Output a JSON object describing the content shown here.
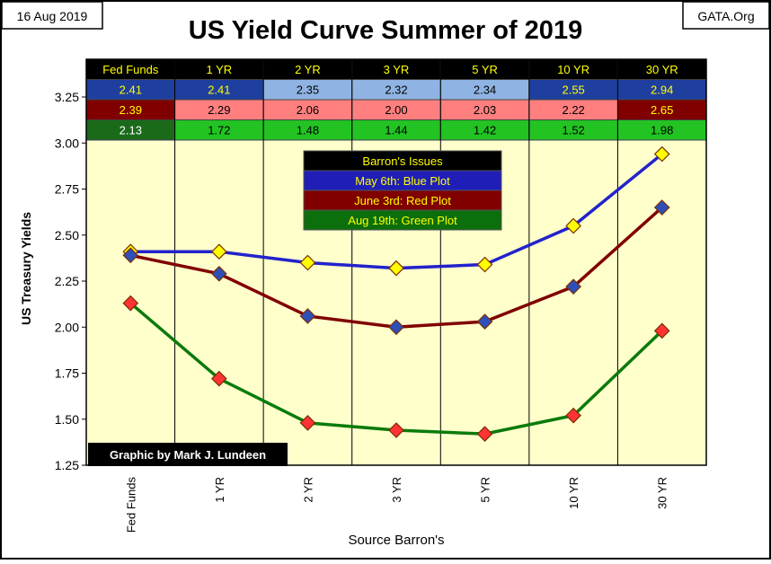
{
  "date_label": "16 Aug 2019",
  "source_label": "GATA.Org",
  "credit": "Graphic by Mark J. Lundeen",
  "legend": {
    "title": "Barron's Issues",
    "items": [
      "May 6th:  Blue Plot",
      "June 3rd: Red Plot",
      "Aug 19th: Green Plot"
    ]
  },
  "colors": {
    "blue_line": "#2222cc",
    "red_line": "#800000",
    "green_line": "#0b7a0b",
    "plot_bg": "#ffffcc",
    "header_bg": "#000000",
    "header_text": "#ffff00",
    "marker_yellow": "#ffff00",
    "marker_blue": "#2e4fb8",
    "marker_red": "#ff3333"
  },
  "table": {
    "headers": [
      "Fed Funds",
      "1 YR",
      "2 YR",
      "3 YR",
      "5 YR",
      "10 YR",
      "30 YR"
    ],
    "rows": [
      {
        "name": "May 6th",
        "values": [
          "2.41",
          "2.41",
          "2.35",
          "2.32",
          "2.34",
          "2.55",
          "2.94"
        ],
        "cell_bg": [
          "#1f3f9f",
          "#1f3f9f",
          "#8fb4e3",
          "#8fb4e3",
          "#8fb4e3",
          "#1f3f9f",
          "#1f3f9f"
        ],
        "cell_fg": [
          "#ffff00",
          "#ffff00",
          "#000000",
          "#000000",
          "#000000",
          "#ffff00",
          "#ffff00"
        ]
      },
      {
        "name": "June 3rd",
        "values": [
          "2.39",
          "2.29",
          "2.06",
          "2.00",
          "2.03",
          "2.22",
          "2.65"
        ],
        "cell_bg": [
          "#800000",
          "#ff7f7f",
          "#ff7f7f",
          "#ff7f7f",
          "#ff7f7f",
          "#ff7f7f",
          "#800000"
        ],
        "cell_fg": [
          "#ffff00",
          "#000000",
          "#000000",
          "#000000",
          "#000000",
          "#000000",
          "#ffff00"
        ]
      },
      {
        "name": "Aug 19th",
        "values": [
          "2.13",
          "1.72",
          "1.48",
          "1.44",
          "1.42",
          "1.52",
          "1.98"
        ],
        "cell_bg": [
          "#1a6a1a",
          "#22c322",
          "#22c322",
          "#22c322",
          "#22c322",
          "#22c322",
          "#22c322"
        ],
        "cell_fg": [
          "#ffffff",
          "#000000",
          "#000000",
          "#000000",
          "#000000",
          "#000000",
          "#000000"
        ]
      }
    ]
  },
  "chart_data": {
    "type": "line",
    "title": "US Yield Curve Summer of 2019",
    "xlabel": "Source Barron's",
    "ylabel": "US Treasury Yields",
    "categories": [
      "Fed Funds",
      "1 YR",
      "2 YR",
      "3 YR",
      "5 YR",
      "10 YR",
      "30 YR"
    ],
    "ylim": [
      1.25,
      3.25
    ],
    "yticks": [
      "1.25",
      "1.50",
      "1.75",
      "2.00",
      "2.25",
      "2.50",
      "2.75",
      "3.00",
      "3.25"
    ],
    "grid": "vertical",
    "legend_position": "top-center",
    "series": [
      {
        "name": "May 6th",
        "values": [
          2.41,
          2.41,
          2.35,
          2.32,
          2.34,
          2.55,
          2.94
        ],
        "line_color": "#2222cc",
        "marker_color": "#ffff00"
      },
      {
        "name": "June 3rd",
        "values": [
          2.39,
          2.29,
          2.06,
          2.0,
          2.03,
          2.22,
          2.65
        ],
        "line_color": "#800000",
        "marker_color": "#2e4fb8"
      },
      {
        "name": "Aug 19th",
        "values": [
          2.13,
          1.72,
          1.48,
          1.44,
          1.42,
          1.52,
          1.98
        ],
        "line_color": "#0b7a0b",
        "marker_color": "#ff3333"
      }
    ]
  }
}
